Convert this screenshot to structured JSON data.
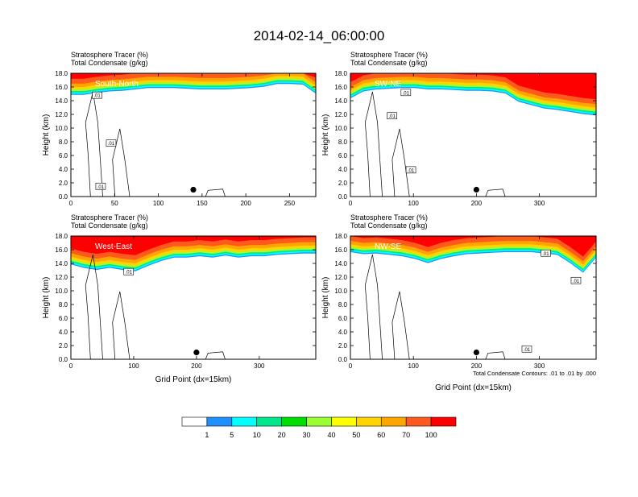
{
  "title": "2014-02-14_06:00:00",
  "panel_header": {
    "line1": "Stratosphere Tracer   (%)",
    "line2": "Total Condensate   (g/kg)"
  },
  "ylabel": "Height (km)",
  "xlabel": "Grid Point (dx=15km)",
  "contour_note": "Total Condensate Contours: .01 to .01 by .000",
  "contour_label": ".01",
  "colorbar": {
    "levels": [
      "1",
      "5",
      "10",
      "20",
      "30",
      "40",
      "50",
      "60",
      "70",
      "100"
    ],
    "colors": [
      "#ffffff",
      "#1e90ff",
      "#00ffff",
      "#00e68c",
      "#00dd00",
      "#9aff32",
      "#ffff00",
      "#ffd400",
      "#ffa500",
      "#ff5a1e",
      "#ff0000"
    ]
  },
  "chart_data": [
    {
      "type": "heatmap",
      "name": "South-North",
      "xlim": [
        0,
        280
      ],
      "xticks": [
        0,
        50,
        100,
        150,
        200,
        250
      ],
      "ylim": [
        0,
        18
      ],
      "yticks": [
        "0.0",
        "2.0",
        "4.0",
        "6.0",
        "8.0",
        "10.0",
        "12.0",
        "14.0",
        "16.0",
        "18.0"
      ],
      "tracer_base_km": [
        15.0,
        15.0,
        15.3,
        15.5,
        15.6,
        15.8,
        16.0,
        16.0,
        16.0,
        15.9,
        15.8,
        15.8,
        15.8,
        15.9,
        16.0,
        16.2,
        16.6,
        16.6,
        16.5,
        15.2
      ],
      "contour_labels": [
        {
          "x": 30,
          "y": 14.8
        },
        {
          "x": 46,
          "y": 7.8
        },
        {
          "x": 34,
          "y": 1.5
        }
      ],
      "marker": {
        "x": 140,
        "y": 1.0
      },
      "show_xlabel": false
    },
    {
      "type": "heatmap",
      "name": "SW-NE",
      "xlim": [
        0,
        390
      ],
      "xticks": [
        0,
        100,
        200,
        300
      ],
      "ylim": [
        0,
        18
      ],
      "yticks": [
        "0.0",
        "2.0",
        "4.0",
        "6.0",
        "8.0",
        "10.0",
        "12.0",
        "14.0",
        "16.0",
        "18.0"
      ],
      "tracer_base_km": [
        14.5,
        15.5,
        15.8,
        15.9,
        16.0,
        16.0,
        15.8,
        15.8,
        15.7,
        15.6,
        15.6,
        15.5,
        15.2,
        14.0,
        13.5,
        13.0,
        12.8,
        12.5,
        12.2,
        12.0
      ],
      "contour_labels": [
        {
          "x": 88,
          "y": 15.2
        },
        {
          "x": 66,
          "y": 11.8
        },
        {
          "x": 96,
          "y": 3.9
        }
      ],
      "marker": {
        "x": 200,
        "y": 1.0
      },
      "show_xlabel": false
    },
    {
      "type": "heatmap",
      "name": "West-East",
      "xlim": [
        0,
        390
      ],
      "xticks": [
        0,
        100,
        200,
        300
      ],
      "ylim": [
        0,
        18
      ],
      "yticks": [
        "0.0",
        "2.0",
        "4.0",
        "6.0",
        "8.0",
        "10.0",
        "12.0",
        "14.0",
        "16.0",
        "18.0"
      ],
      "tracer_base_km": [
        14.0,
        13.5,
        13.2,
        13.5,
        13.2,
        13.0,
        13.8,
        14.5,
        15.0,
        15.0,
        15.2,
        15.0,
        15.3,
        15.0,
        15.2,
        15.2,
        15.4,
        15.5,
        15.6,
        15.6
      ],
      "contour_labels": [
        {
          "x": 92,
          "y": 12.8
        }
      ],
      "marker": {
        "x": 200,
        "y": 1.0
      },
      "show_xlabel": true
    },
    {
      "type": "heatmap",
      "name": "NW-SE",
      "xlim": [
        0,
        390
      ],
      "xticks": [
        0,
        100,
        200,
        300
      ],
      "ylim": [
        0,
        18
      ],
      "yticks": [
        "0.0",
        "2.0",
        "4.0",
        "6.0",
        "8.0",
        "10.0",
        "12.0",
        "14.0",
        "16.0",
        "18.0"
      ],
      "tracer_base_km": [
        15.8,
        15.5,
        15.6,
        15.4,
        15.2,
        14.8,
        14.2,
        14.8,
        15.2,
        15.5,
        15.6,
        15.7,
        15.8,
        15.8,
        15.8,
        15.6,
        15.4,
        14.2,
        12.8,
        15.0
      ],
      "contour_labels": [
        {
          "x": 310,
          "y": 15.5
        },
        {
          "x": 358,
          "y": 11.5
        },
        {
          "x": 280,
          "y": 1.5
        }
      ],
      "marker": {
        "x": 200,
        "y": 1.0
      },
      "show_xlabel": true,
      "show_note": true
    }
  ]
}
